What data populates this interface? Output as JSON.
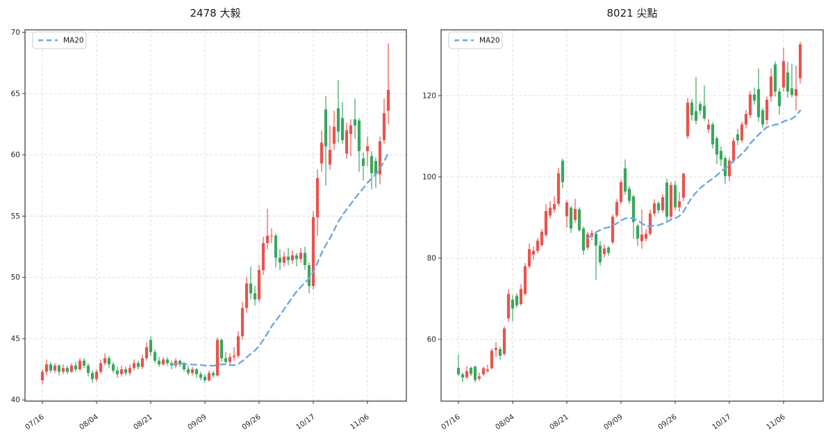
{
  "figure": {
    "background": "#ffffff"
  },
  "colors": {
    "up_candle": "#e8544e",
    "down_candle": "#3aa65e",
    "ma20_line": "#6fa8dc",
    "grid": "#d9d9d9",
    "axis": "#333333",
    "tick_text": "#262626",
    "legend_border": "#cccccc"
  },
  "chart_data": [
    {
      "type": "candlestick",
      "title": "2478 大毅",
      "legend_label": "MA20",
      "ma_window": 20,
      "ma_plot_from": 31,
      "ylim": [
        39.9,
        70.2
      ],
      "y_ticks": [
        40,
        45,
        50,
        55,
        60,
        65,
        70
      ],
      "x_ticks": [
        {
          "index": 0,
          "label": "07/16"
        },
        {
          "index": 13,
          "label": "08/04"
        },
        {
          "index": 26,
          "label": "08/21"
        },
        {
          "index": 39,
          "label": "09/09"
        },
        {
          "index": 52,
          "label": "09/26"
        },
        {
          "index": 65,
          "label": "10/17"
        },
        {
          "index": 78,
          "label": "11/06"
        }
      ],
      "ohlc": [
        [
          41.6,
          42.5,
          41.3,
          42.3
        ],
        [
          42.3,
          43.3,
          42.0,
          42.9
        ],
        [
          42.9,
          43.1,
          42.2,
          42.4
        ],
        [
          42.4,
          43.0,
          42.2,
          42.8
        ],
        [
          42.8,
          42.9,
          42.0,
          42.3
        ],
        [
          42.3,
          42.9,
          42.1,
          42.6
        ],
        [
          42.6,
          42.8,
          42.1,
          42.3
        ],
        [
          42.3,
          43.0,
          42.2,
          42.8
        ],
        [
          42.8,
          43.1,
          42.3,
          42.5
        ],
        [
          42.5,
          43.4,
          42.4,
          43.2
        ],
        [
          43.2,
          43.4,
          42.6,
          42.8
        ],
        [
          42.8,
          43.0,
          41.9,
          42.2
        ],
        [
          42.2,
          42.4,
          41.4,
          41.7
        ],
        [
          41.7,
          42.5,
          41.5,
          42.3
        ],
        [
          42.3,
          43.3,
          42.1,
          43.0
        ],
        [
          43.0,
          43.8,
          42.8,
          43.4
        ],
        [
          43.4,
          43.6,
          42.6,
          42.9
        ],
        [
          42.9,
          43.1,
          42.2,
          42.4
        ],
        [
          42.4,
          42.7,
          41.8,
          42.1
        ],
        [
          42.1,
          42.8,
          41.9,
          42.5
        ],
        [
          42.5,
          42.7,
          42.0,
          42.2
        ],
        [
          42.2,
          42.9,
          42.0,
          42.6
        ],
        [
          42.6,
          43.3,
          42.4,
          43.0
        ],
        [
          43.0,
          43.2,
          42.5,
          42.7
        ],
        [
          42.7,
          43.7,
          42.5,
          43.4
        ],
        [
          43.4,
          44.7,
          43.2,
          44.3
        ],
        [
          44.9,
          45.2,
          43.6,
          43.9
        ],
        [
          43.9,
          44.1,
          43.0,
          43.2
        ],
        [
          43.2,
          43.5,
          42.7,
          42.9
        ],
        [
          42.9,
          43.5,
          42.8,
          43.3
        ],
        [
          43.3,
          43.5,
          42.8,
          43.0
        ],
        [
          43.0,
          43.2,
          42.5,
          42.8
        ],
        [
          42.8,
          43.4,
          42.6,
          43.2
        ],
        [
          43.2,
          43.3,
          42.7,
          42.9
        ],
        [
          42.9,
          43.1,
          42.3,
          42.5
        ],
        [
          42.5,
          42.8,
          42.0,
          42.2
        ],
        [
          42.2,
          42.7,
          42.0,
          42.5
        ],
        [
          42.5,
          42.6,
          41.8,
          42.1
        ],
        [
          42.1,
          42.3,
          41.6,
          41.8
        ],
        [
          41.9,
          42.1,
          41.4,
          41.6
        ],
        [
          41.6,
          42.4,
          41.5,
          42.2
        ],
        [
          42.2,
          42.4,
          41.8,
          42.0
        ],
        [
          42.0,
          45.1,
          41.9,
          44.9
        ],
        [
          44.9,
          45.0,
          43.1,
          43.4
        ],
        [
          43.4,
          43.9,
          42.9,
          43.1
        ],
        [
          43.1,
          43.8,
          42.9,
          43.5
        ],
        [
          43.5,
          44.3,
          43.2,
          43.6
        ],
        [
          43.6,
          45.6,
          43.4,
          45.2
        ],
        [
          45.2,
          48.0,
          44.9,
          47.5
        ],
        [
          47.5,
          50.0,
          47.1,
          49.5
        ],
        [
          49.5,
          50.9,
          48.2,
          48.7
        ],
        [
          48.7,
          49.3,
          47.7,
          48.2
        ],
        [
          48.2,
          51.0,
          48.0,
          50.6
        ],
        [
          50.6,
          53.3,
          50.2,
          52.8
        ],
        [
          52.8,
          55.6,
          52.3,
          53.4
        ],
        [
          53.4,
          54.0,
          52.8,
          53.4
        ],
        [
          53.4,
          53.6,
          50.8,
          51.6
        ],
        [
          51.6,
          52.3,
          50.6,
          51.2
        ],
        [
          51.2,
          52.1,
          50.9,
          51.7
        ],
        [
          51.7,
          52.4,
          51.0,
          51.4
        ],
        [
          51.4,
          52.2,
          51.1,
          51.8
        ],
        [
          51.8,
          52.0,
          50.9,
          51.5
        ],
        [
          51.5,
          52.4,
          51.2,
          52.0
        ],
        [
          52.0,
          52.5,
          50.6,
          51.0
        ],
        [
          51.0,
          51.2,
          48.7,
          49.3
        ],
        [
          49.3,
          55.4,
          49.0,
          54.9
        ],
        [
          54.9,
          58.8,
          53.4,
          58.1
        ],
        [
          59.3,
          62.0,
          58.6,
          61.0
        ],
        [
          63.7,
          64.8,
          57.5,
          60.7
        ],
        [
          59.2,
          62.4,
          58.8,
          60.4
        ],
        [
          60.9,
          63.6,
          60.4,
          62.3
        ],
        [
          63.8,
          66.1,
          61.0,
          61.9
        ],
        [
          63.0,
          64.3,
          60.9,
          61.2
        ],
        [
          60.1,
          62.6,
          59.7,
          62.0
        ],
        [
          61.7,
          62.9,
          59.9,
          62.4
        ],
        [
          62.9,
          64.6,
          61.3,
          62.4
        ],
        [
          62.8,
          63.0,
          58.6,
          60.3
        ],
        [
          59.7,
          60.2,
          57.9,
          59.1
        ],
        [
          60.3,
          61.5,
          59.1,
          60.7
        ],
        [
          59.9,
          60.3,
          57.2,
          58.5
        ],
        [
          59.5,
          59.8,
          57.3,
          58.4
        ],
        [
          58.4,
          61.5,
          57.6,
          61.1
        ],
        [
          61.2,
          64.6,
          60.9,
          63.4
        ],
        [
          63.6,
          69.1,
          62.5,
          65.3
        ]
      ]
    },
    {
      "type": "candlestick",
      "title": "8021 尖點",
      "legend_label": "MA20",
      "ma_window": 20,
      "ma_plot_from": 31,
      "ylim": [
        44.8,
        136.2
      ],
      "y_ticks": [
        60,
        80,
        100,
        120
      ],
      "x_ticks": [
        {
          "index": 0,
          "label": "07/16"
        },
        {
          "index": 13,
          "label": "08/04"
        },
        {
          "index": 26,
          "label": "08/21"
        },
        {
          "index": 39,
          "label": "09/09"
        },
        {
          "index": 52,
          "label": "09/26"
        },
        {
          "index": 65,
          "label": "10/17"
        },
        {
          "index": 78,
          "label": "11/06"
        }
      ],
      "ohlc": [
        [
          53.0,
          56.3,
          51.0,
          51.4
        ],
        [
          51.4,
          51.8,
          49.5,
          50.6
        ],
        [
          50.7,
          53.4,
          50.3,
          52.2
        ],
        [
          53.0,
          53.3,
          51.0,
          51.5
        ],
        [
          53.3,
          53.5,
          49.4,
          50.0
        ],
        [
          50.3,
          51.8,
          49.8,
          50.9
        ],
        [
          51.4,
          53.3,
          51.0,
          52.9
        ],
        [
          52.2,
          53.8,
          51.8,
          52.6
        ],
        [
          52.9,
          57.8,
          52.6,
          57.2
        ],
        [
          57.4,
          59.3,
          55.7,
          57.9
        ],
        [
          57.6,
          58.2,
          55.0,
          56.0
        ],
        [
          56.4,
          63.2,
          56.0,
          62.7
        ],
        [
          65.2,
          72.4,
          64.3,
          71.2
        ],
        [
          69.8,
          70.9,
          64.5,
          67.6
        ],
        [
          70.7,
          71.3,
          67.8,
          68.4
        ],
        [
          68.7,
          73.6,
          68.3,
          72.4
        ],
        [
          71.2,
          78.8,
          70.8,
          78.0
        ],
        [
          78.0,
          83.6,
          77.4,
          82.2
        ],
        [
          80.9,
          82.9,
          79.6,
          81.8
        ],
        [
          81.8,
          85.0,
          81.2,
          84.3
        ],
        [
          83.2,
          87.2,
          82.8,
          86.5
        ],
        [
          85.7,
          93.3,
          85.2,
          91.6
        ],
        [
          90.5,
          94.0,
          89.8,
          92.4
        ],
        [
          92.0,
          95.2,
          91.2,
          93.3
        ],
        [
          93.4,
          102.2,
          92.8,
          100.9
        ],
        [
          104.0,
          104.5,
          97.2,
          98.7
        ],
        [
          90.3,
          94.3,
          87.5,
          93.7
        ],
        [
          92.4,
          92.8,
          86.2,
          87.3
        ],
        [
          89.4,
          94.6,
          88.7,
          92.1
        ],
        [
          92.0,
          92.5,
          86.5,
          86.9
        ],
        [
          87.3,
          87.8,
          80.8,
          81.9
        ],
        [
          82.6,
          86.5,
          82.0,
          85.9
        ],
        [
          85.3,
          87.0,
          84.4,
          86.2
        ],
        [
          86.0,
          86.4,
          74.6,
          83.1
        ],
        [
          83.1,
          84.2,
          78.2,
          79.0
        ],
        [
          81.0,
          83.3,
          80.2,
          82.4
        ],
        [
          82.6,
          83.0,
          80.6,
          81.3
        ],
        [
          83.9,
          90.8,
          83.4,
          90.2
        ],
        [
          90.5,
          94.5,
          90.0,
          93.8
        ],
        [
          93.8,
          99.4,
          93.2,
          98.7
        ],
        [
          102.1,
          104.3,
          95.6,
          96.4
        ],
        [
          97.1,
          97.8,
          93.3,
          94.1
        ],
        [
          95.2,
          95.6,
          84.8,
          88.9
        ],
        [
          88.0,
          88.4,
          83.0,
          84.8
        ],
        [
          84.2,
          92.0,
          82.3,
          85.8
        ],
        [
          84.8,
          87.1,
          84.1,
          86.0
        ],
        [
          86.0,
          92.0,
          85.5,
          91.0
        ],
        [
          91.0,
          94.5,
          90.2,
          93.5
        ],
        [
          93.5,
          94.0,
          91.0,
          91.8
        ],
        [
          91.8,
          95.8,
          91.2,
          95.0
        ],
        [
          98.6,
          99.6,
          89.2,
          90.2
        ],
        [
          90.2,
          98.8,
          89.8,
          98.0
        ],
        [
          98.0,
          99.0,
          91.8,
          92.5
        ],
        [
          92.5,
          96.2,
          91.5,
          94.0
        ],
        [
          94.9,
          101.0,
          94.0,
          100.8
        ],
        [
          110.0,
          119.4,
          109.4,
          118.3
        ],
        [
          118.3,
          119.2,
          113.9,
          115.2
        ],
        [
          116.2,
          124.6,
          113.0,
          113.8
        ],
        [
          117.9,
          118.6,
          115.4,
          116.3
        ],
        [
          117.5,
          122.5,
          113.8,
          114.4
        ],
        [
          111.7,
          114.2,
          110.8,
          112.9
        ],
        [
          112.9,
          113.5,
          107.0,
          108.0
        ],
        [
          109.5,
          110.0,
          103.1,
          105.5
        ],
        [
          106.4,
          107.5,
          102.7,
          104.3
        ],
        [
          104.6,
          105.2,
          98.2,
          100.2
        ],
        [
          100.2,
          104.8,
          99.0,
          104.0
        ],
        [
          104.0,
          109.6,
          103.4,
          108.9
        ],
        [
          110.5,
          111.8,
          107.8,
          109.0
        ],
        [
          109.0,
          113.6,
          108.4,
          112.9
        ],
        [
          112.9,
          116.5,
          111.9,
          115.5
        ],
        [
          115.2,
          121.2,
          114.4,
          120.3
        ],
        [
          120.3,
          122.0,
          117.8,
          118.8
        ],
        [
          121.6,
          126.7,
          113.6,
          114.7
        ],
        [
          116.4,
          117.0,
          112.0,
          112.9
        ],
        [
          114.0,
          119.8,
          112.9,
          119.0
        ],
        [
          119.8,
          126.7,
          118.5,
          124.7
        ],
        [
          127.7,
          128.4,
          119.8,
          121.0
        ],
        [
          121.0,
          121.8,
          115.3,
          117.4
        ],
        [
          122.0,
          131.8,
          121.0,
          128.5
        ],
        [
          125.7,
          128.3,
          119.5,
          121.0
        ],
        [
          121.8,
          127.9,
          119.6,
          120.2
        ],
        [
          120.0,
          127.4,
          116.4,
          121.6
        ],
        [
          124.3,
          133.3,
          123.0,
          132.6
        ]
      ]
    }
  ]
}
